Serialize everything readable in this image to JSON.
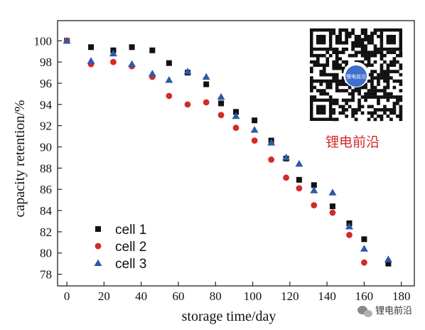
{
  "chart_data": {
    "type": "scatter",
    "xlabel": "storage time/day",
    "ylabel": "capacity retention/%",
    "xlim": [
      -5,
      187
    ],
    "ylim": [
      76.9,
      101.9
    ],
    "xticks": [
      0,
      20,
      40,
      60,
      80,
      100,
      120,
      140,
      160,
      180
    ],
    "yticks": [
      78,
      80,
      82,
      84,
      86,
      88,
      90,
      92,
      94,
      96,
      98,
      100
    ],
    "legend": "bottom-left",
    "grid": false,
    "series": [
      {
        "name": "cell 1",
        "marker": "square",
        "color": "#111111",
        "x": [
          0,
          13,
          25,
          35,
          46,
          55,
          65,
          75,
          83,
          91,
          101,
          110,
          118,
          125,
          133,
          143,
          152,
          160,
          173
        ],
        "y": [
          100.0,
          99.4,
          99.1,
          99.4,
          99.1,
          97.9,
          97.0,
          95.9,
          94.1,
          93.3,
          92.5,
          90.6,
          88.9,
          86.9,
          86.4,
          84.4,
          82.8,
          81.3,
          79.0
        ]
      },
      {
        "name": "cell 2",
        "marker": "circle",
        "color": "#d42a2a",
        "x": [
          0,
          13,
          25,
          35,
          46,
          55,
          65,
          75,
          83,
          91,
          101,
          110,
          118,
          125,
          133,
          143,
          152,
          160
        ],
        "y": [
          100.0,
          97.8,
          98.0,
          97.6,
          96.6,
          94.8,
          94.0,
          94.2,
          93.0,
          91.8,
          90.6,
          88.8,
          87.1,
          86.1,
          84.5,
          83.8,
          81.7,
          79.1
        ]
      },
      {
        "name": "cell 3",
        "marker": "triangle",
        "color": "#2e5aa7",
        "x": [
          0,
          13,
          25,
          35,
          46,
          55,
          65,
          75,
          83,
          91,
          101,
          110,
          118,
          125,
          133,
          143,
          152,
          160,
          173
        ],
        "y": [
          100.0,
          98.1,
          98.8,
          97.8,
          96.9,
          96.3,
          97.1,
          96.6,
          94.7,
          92.9,
          91.6,
          90.4,
          89.0,
          88.4,
          85.9,
          85.7,
          82.5,
          80.4,
          79.4
        ]
      }
    ]
  },
  "watermark": {
    "brand_text": "锂电前沿",
    "qr_center_label": "锂电前沿",
    "footer_text": "锂电前沿"
  }
}
